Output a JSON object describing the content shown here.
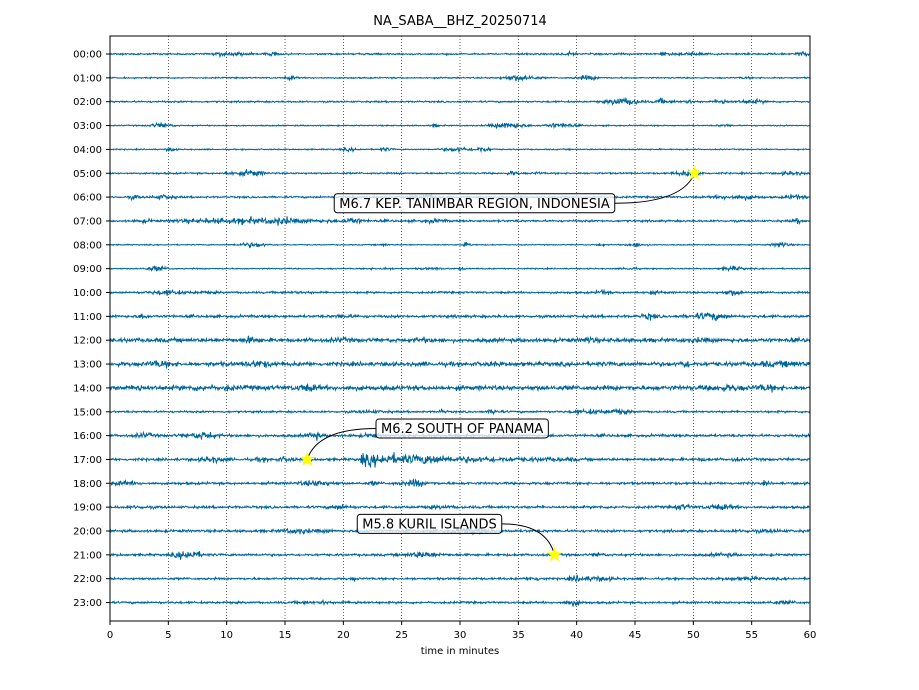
{
  "chart_data": {
    "type": "line",
    "title": "NA_SABA__BHZ_20250714",
    "xlabel": "time in minutes",
    "ylabel": "",
    "xlim": [
      0,
      60
    ],
    "x_ticks": [
      0,
      5,
      10,
      15,
      20,
      25,
      30,
      35,
      40,
      45,
      50,
      55,
      60
    ],
    "grid": "vertical dotted at x ticks",
    "trace_color": "#006699",
    "hour_labels": [
      "00:00",
      "01:00",
      "02:00",
      "03:00",
      "04:00",
      "05:00",
      "06:00",
      "07:00",
      "08:00",
      "09:00",
      "10:00",
      "11:00",
      "12:00",
      "13:00",
      "14:00",
      "15:00",
      "16:00",
      "17:00",
      "18:00",
      "19:00",
      "20:00",
      "21:00",
      "22:00",
      "23:00"
    ],
    "trace_amplitude_level": [
      1,
      0.8,
      1,
      0.7,
      0.7,
      1,
      1.1,
      1.2,
      0.6,
      0.7,
      1.2,
      1.6,
      2.4,
      2.6,
      2.8,
      1.2,
      1.6,
      1.6,
      1.5,
      1.5,
      1.5,
      1.4,
      1.3,
      1.3
    ],
    "events": [
      {
        "label": "M6.7 KEP. TANIMBAR REGION, INDONESIA",
        "hour": "05:00",
        "minute": 50.1,
        "marker_color": "#ffff00"
      },
      {
        "label": "M6.2 SOUTH OF PANAMA",
        "hour": "17:00",
        "minute": 16.9,
        "marker_color": "#ffff00"
      },
      {
        "label": "M5.8 KURIL ISLANDS",
        "hour": "21:00",
        "minute": 38.1,
        "marker_color": "#ffff00"
      }
    ]
  }
}
